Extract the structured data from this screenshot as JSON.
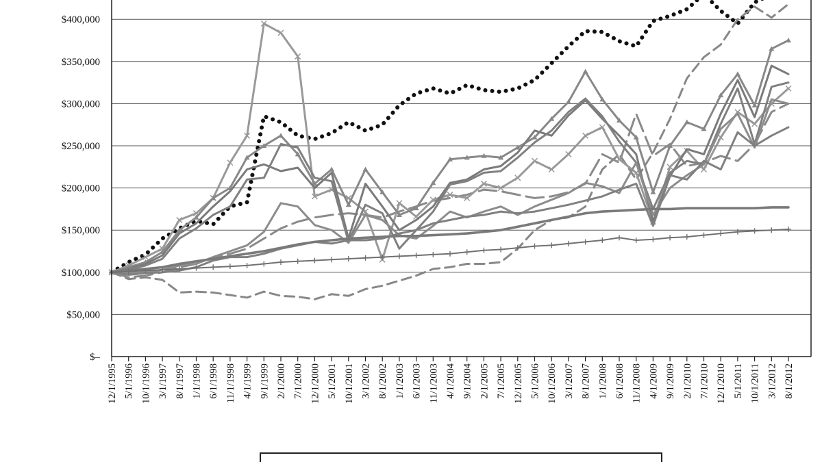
{
  "chart_data": {
    "type": "line",
    "title": "",
    "xlabel": "",
    "ylabel": "",
    "ylim": [
      0,
      430000
    ],
    "grid": "horizontal",
    "legend": "bottom-center (box cropped, entries not visible)",
    "y_ticks": [
      {
        "value": 0,
        "label": "$–"
      },
      {
        "value": 50000,
        "label": "$50,000"
      },
      {
        "value": 100000,
        "label": "$100,000"
      },
      {
        "value": 150000,
        "label": "$150,000"
      },
      {
        "value": 200000,
        "label": "$200,000"
      },
      {
        "value": 250000,
        "label": "$250,000"
      },
      {
        "value": 300000,
        "label": "$300,000"
      },
      {
        "value": 350000,
        "label": "$350,000"
      },
      {
        "value": 400000,
        "label": "$400,000"
      }
    ],
    "x_ticks": [
      "12/1/1995",
      "5/1/1996",
      "10/1/1996",
      "3/1/1997",
      "8/1/1997",
      "1/1/1998",
      "6/1/1998",
      "11/1/1998",
      "4/1/1999",
      "9/1/1999",
      "2/1/2000",
      "7/1/2000",
      "12/1/2000",
      "5/1/2001",
      "10/1/2001",
      "3/1/2002",
      "8/1/2002",
      "1/1/2003",
      "6/1/2003",
      "11/1/2003",
      "4/1/2004",
      "9/1/2004",
      "2/1/2005",
      "7/1/2005",
      "12/1/2005",
      "5/1/2006",
      "10/1/2006",
      "3/1/2007",
      "8/1/2007",
      "1/1/2008",
      "6/1/2008",
      "11/1/2008",
      "4/1/2009",
      "9/1/2009",
      "2/1/2010",
      "7/1/2010",
      "12/1/2010",
      "5/1/2011",
      "10/1/2011",
      "3/1/2012",
      "8/1/2012"
    ],
    "series": [
      {
        "style": "dotted",
        "color": "#111111",
        "values": [
          100000,
          112000,
          121000,
          140000,
          152000,
          161000,
          157000,
          178000,
          183000,
          285000,
          278000,
          262000,
          258000,
          265000,
          278000,
          268000,
          275000,
          298000,
          312000,
          318000,
          312000,
          322000,
          316000,
          314000,
          318000,
          328000,
          348000,
          368000,
          386000,
          385000,
          374000,
          368000,
          398000,
          404000,
          412000,
          430000,
          410000,
          395000,
          420000,
          430000,
          435000
        ]
      },
      {
        "style": "dashed",
        "color": "#888888",
        "values": [
          100000,
          92000,
          94000,
          91000,
          76000,
          77000,
          76000,
          73000,
          70000,
          77000,
          72000,
          71000,
          68000,
          74000,
          72000,
          80000,
          84000,
          90000,
          96000,
          104000,
          106000,
          110000,
          110000,
          112000,
          128000,
          150000,
          162000,
          165000,
          178000,
          222000,
          240000,
          210000,
          242000,
          282000,
          330000,
          355000,
          370000,
          400000,
          415000,
          402000,
          418000
        ]
      },
      {
        "style": "long-dash",
        "color": "#8a8a8a",
        "values": [
          100000,
          94000,
          96000,
          100000,
          106000,
          110000,
          118000,
          122000,
          128000,
          140000,
          152000,
          160000,
          165000,
          168000,
          170000,
          168000,
          165000,
          172000,
          178000,
          185000,
          188000,
          192000,
          198000,
          196000,
          192000,
          188000,
          190000,
          195000,
          205000,
          240000,
          230000,
          288000,
          238000,
          252000,
          226000,
          230000,
          238000,
          232000,
          252000,
          290000,
          300000
        ]
      },
      {
        "style": "solid-x",
        "color": "#999999",
        "values": [
          100000,
          108000,
          118000,
          128000,
          162000,
          170000,
          188000,
          230000,
          262000,
          395000,
          384000,
          356000,
          190000,
          198000,
          188000,
          172000,
          115000,
          182000,
          166000,
          186000,
          192000,
          188000,
          205000,
          200000,
          212000,
          232000,
          222000,
          240000,
          262000,
          272000,
          234000,
          218000,
          160000,
          225000,
          244000,
          222000,
          260000,
          290000,
          276000,
          300000,
          318000
        ]
      },
      {
        "style": "solid-triangle",
        "color": "#888888",
        "values": [
          100000,
          106000,
          112000,
          124000,
          150000,
          165000,
          188000,
          200000,
          236000,
          250000,
          262000,
          240000,
          205000,
          222000,
          180000,
          222000,
          195000,
          168000,
          176000,
          206000,
          234000,
          236000,
          238000,
          236000,
          248000,
          260000,
          282000,
          302000,
          338000,
          305000,
          280000,
          260000,
          195000,
          250000,
          278000,
          270000,
          310000,
          335000,
          298000,
          365000,
          375000
        ]
      },
      {
        "style": "solid",
        "color": "#7a7a7a",
        "values": [
          100000,
          104000,
          110000,
          120000,
          146000,
          158000,
          178000,
          196000,
          222000,
          228000,
          220000,
          224000,
          200000,
          218000,
          140000,
          205000,
          178000,
          150000,
          162000,
          178000,
          206000,
          210000,
          222000,
          226000,
          242000,
          268000,
          262000,
          286000,
          304000,
          282000,
          262000,
          240000,
          160000,
          214000,
          246000,
          240000,
          288000,
          328000,
          284000,
          345000,
          335000
        ]
      },
      {
        "style": "solid",
        "color": "#808080",
        "values": [
          100000,
          103000,
          108000,
          116000,
          140000,
          152000,
          168000,
          178000,
          210000,
          212000,
          252000,
          248000,
          212000,
          208000,
          136000,
          180000,
          170000,
          128000,
          150000,
          172000,
          204000,
          208000,
          218000,
          220000,
          236000,
          254000,
          268000,
          290000,
          306000,
          285000,
          255000,
          230000,
          175000,
          218000,
          232000,
          228000,
          276000,
          318000,
          252000,
          320000,
          325000
        ]
      },
      {
        "style": "solid",
        "color": "#8c8c8c",
        "values": [
          100000,
          99000,
          100000,
          103000,
          108000,
          110000,
          118000,
          125000,
          132000,
          148000,
          182000,
          178000,
          156000,
          150000,
          135000,
          168000,
          162000,
          144000,
          140000,
          155000,
          172000,
          165000,
          172000,
          178000,
          168000,
          178000,
          186000,
          194000,
          206000,
          202000,
          194000,
          230000,
          168000,
          200000,
          215000,
          228000,
          270000,
          288000,
          248000,
          305000,
          300000
        ]
      },
      {
        "style": "solid",
        "color": "#808080",
        "values": [
          100000,
          97000,
          99000,
          100000,
          102000,
          106000,
          114000,
          118000,
          118000,
          122000,
          128000,
          132000,
          136000,
          134000,
          138000,
          138000,
          140000,
          146000,
          150000,
          158000,
          162000,
          166000,
          168000,
          172000,
          170000,
          172000,
          176000,
          180000,
          185000,
          190000,
          198000,
          205000,
          155000,
          215000,
          210000,
          232000,
          222000,
          266000,
          250000,
          262000,
          272000
        ]
      },
      {
        "style": "solid-thick",
        "color": "#7a7a7a",
        "values": [
          100000,
          102000,
          104000,
          106000,
          110000,
          113000,
          116000,
          119000,
          122000,
          125000,
          129000,
          133000,
          136000,
          138000,
          140000,
          141000,
          142000,
          143000,
          143000,
          144000,
          145000,
          146000,
          148000,
          150000,
          154000,
          158000,
          162000,
          166000,
          170000,
          172000,
          173000,
          174000,
          175000,
          175000,
          176000,
          176000,
          176000,
          176000,
          176000,
          177000,
          177000
        ]
      },
      {
        "style": "solid-plus",
        "color": "#707070",
        "values": [
          100000,
          101000,
          102000,
          103000,
          104000,
          105000,
          106000,
          107000,
          108000,
          110000,
          112000,
          113000,
          114000,
          115000,
          116000,
          117000,
          118000,
          119000,
          120000,
          121000,
          122000,
          124000,
          126000,
          127000,
          129000,
          131000,
          132000,
          134000,
          136000,
          138000,
          141000,
          138000,
          139000,
          141000,
          142000,
          144000,
          146000,
          148000,
          149000,
          150000,
          151000
        ]
      }
    ]
  }
}
